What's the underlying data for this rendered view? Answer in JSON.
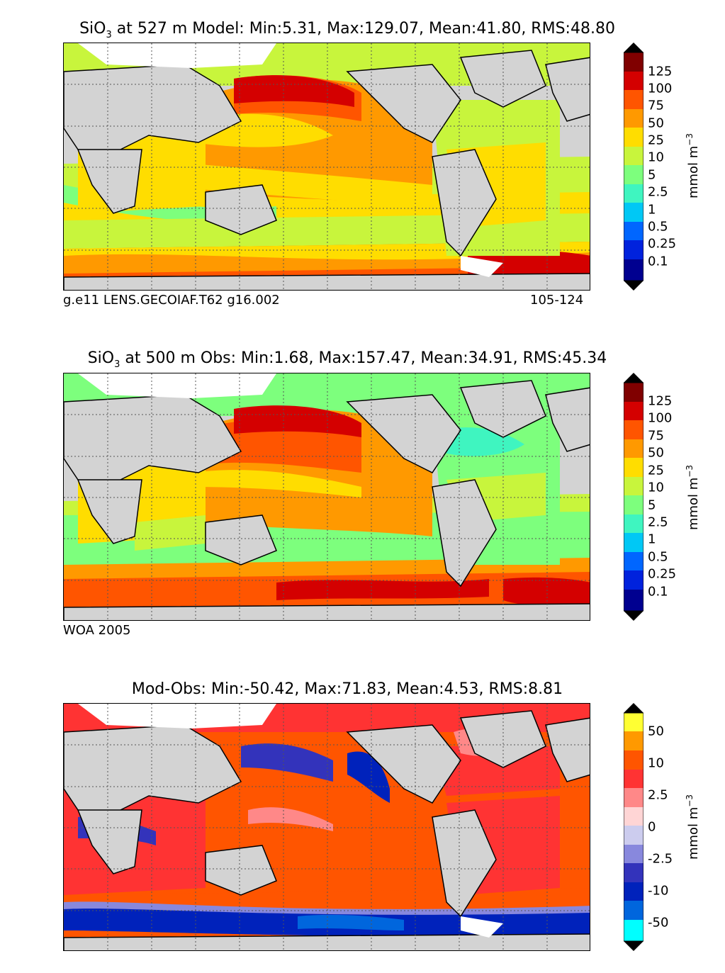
{
  "panels": [
    {
      "title_prefix": "SiO",
      "title_sub": "3",
      "title_rest": " at 527 m Model: Min:5.31, Max:129.07, Mean:41.80, RMS:48.80",
      "caption_left": "g.e11 LENS.GECOIAF.T62 g16.002",
      "caption_right": "105-124",
      "colorbar_ticks": [
        "125",
        "100",
        "75",
        "50",
        "25",
        "10",
        "5",
        "2.5",
        "1",
        "0.5",
        "0.25",
        "0.1"
      ],
      "colorbar_colors": [
        "#800000",
        "#d40000",
        "#ff5500",
        "#ff9900",
        "#ffdd00",
        "#c8f53c",
        "#7dff7d",
        "#3ff5c0",
        "#00c8f5",
        "#0066ff",
        "#0022dd",
        "#000090"
      ],
      "unit_label": "mmol m",
      "unit_exp": "−3"
    },
    {
      "title_prefix": "SiO",
      "title_sub": "3",
      "title_rest": " at 500 m Obs: Min:1.68, Max:157.47, Mean:34.91, RMS:45.34",
      "caption_left": "WOA 2005",
      "caption_right": "",
      "colorbar_ticks": [
        "125",
        "100",
        "75",
        "50",
        "25",
        "10",
        "5",
        "2.5",
        "1",
        "0.5",
        "0.25",
        "0.1"
      ],
      "colorbar_colors": [
        "#800000",
        "#d40000",
        "#ff5500",
        "#ff9900",
        "#ffdd00",
        "#c8f53c",
        "#7dff7d",
        "#3ff5c0",
        "#00c8f5",
        "#0066ff",
        "#0022dd",
        "#000090"
      ],
      "unit_label": "mmol m",
      "unit_exp": "−3"
    },
    {
      "title_prefix": "",
      "title_sub": "",
      "title_rest": "Mod-Obs: Min:-50.42, Max:71.83, Mean:4.53, RMS:8.81",
      "caption_left": "",
      "caption_right": "",
      "colorbar_ticks": [
        "50",
        "10",
        "2.5",
        "0",
        "-2.5",
        "-10",
        "-50"
      ],
      "colorbar_colors": [
        "#ffff33",
        "#ff9900",
        "#ff5500",
        "#ff3333",
        "#ff8888",
        "#ffd5d5",
        "#ccccee",
        "#8888dd",
        "#3333bb",
        "#0022bb",
        "#0066dd",
        "#00ffff"
      ],
      "unit_label": "mmol m",
      "unit_exp": "−3"
    }
  ],
  "colors": {
    "land": "#d3d3d3",
    "ice": "#ffffff",
    "grid": "#555555"
  }
}
